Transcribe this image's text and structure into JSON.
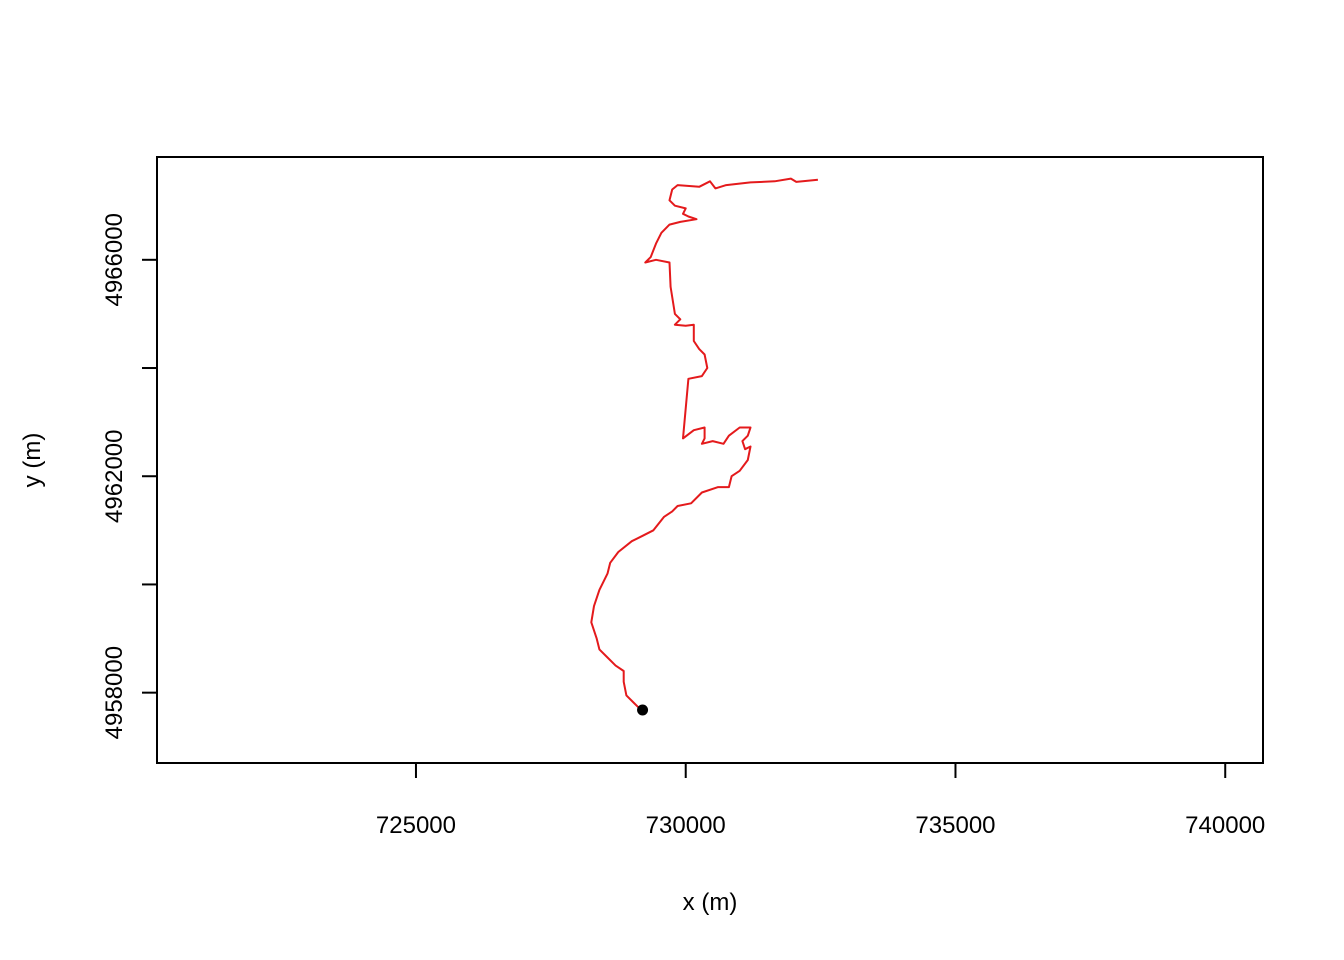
{
  "chart_data": {
    "type": "line",
    "title": "",
    "xlabel": "x (m)",
    "ylabel": "y (m)",
    "xlim": [
      720200,
      740700
    ],
    "ylim": [
      4956700,
      4967900
    ],
    "x_ticks": [
      725000,
      730000,
      735000,
      740000
    ],
    "y_ticks": [
      4956000,
      4958000,
      4960000,
      4962000,
      4964000,
      4966000,
      4968000
    ],
    "x_tick_labels": [
      "725000",
      "730000",
      "735000",
      "740000"
    ],
    "y_tick_labels": [
      "4958000",
      "4962000",
      "4966000"
    ],
    "grid": false,
    "legend": "none",
    "series": [
      {
        "color": "#e41a1c",
        "points": [
          [
            732450,
            4967480
          ],
          [
            732050,
            4967440
          ],
          [
            731950,
            4967500
          ],
          [
            731650,
            4967450
          ],
          [
            731200,
            4967430
          ],
          [
            730750,
            4967380
          ],
          [
            730550,
            4967320
          ],
          [
            730450,
            4967450
          ],
          [
            730250,
            4967350
          ],
          [
            729850,
            4967380
          ],
          [
            729750,
            4967300
          ],
          [
            729700,
            4967100
          ],
          [
            729800,
            4967000
          ],
          [
            730000,
            4966950
          ],
          [
            729950,
            4966850
          ],
          [
            730050,
            4966800
          ],
          [
            730200,
            4966750
          ],
          [
            729900,
            4966700
          ],
          [
            729700,
            4966650
          ],
          [
            729550,
            4966500
          ],
          [
            729450,
            4966300
          ],
          [
            729350,
            4966050
          ],
          [
            729250,
            4965950
          ],
          [
            729450,
            4966000
          ],
          [
            729700,
            4965950
          ],
          [
            729720,
            4965500
          ],
          [
            729800,
            4965000
          ],
          [
            729900,
            4964900
          ],
          [
            729800,
            4964800
          ],
          [
            730000,
            4964780
          ],
          [
            730150,
            4964800
          ],
          [
            730150,
            4964500
          ],
          [
            730250,
            4964350
          ],
          [
            730350,
            4964250
          ],
          [
            730400,
            4964000
          ],
          [
            730300,
            4963850
          ],
          [
            730050,
            4963800
          ],
          [
            729950,
            4962700
          ],
          [
            730150,
            4962850
          ],
          [
            730350,
            4962900
          ],
          [
            730350,
            4962700
          ],
          [
            730300,
            4962600
          ],
          [
            730500,
            4962650
          ],
          [
            730700,
            4962600
          ],
          [
            730800,
            4962750
          ],
          [
            731000,
            4962900
          ],
          [
            731200,
            4962900
          ],
          [
            731150,
            4962750
          ],
          [
            731050,
            4962650
          ],
          [
            731100,
            4962500
          ],
          [
            731200,
            4962550
          ],
          [
            731150,
            4962300
          ],
          [
            731000,
            4962100
          ],
          [
            730850,
            4962000
          ],
          [
            730800,
            4961800
          ],
          [
            730600,
            4961800
          ],
          [
            730300,
            4961700
          ],
          [
            730100,
            4961500
          ],
          [
            729850,
            4961450
          ],
          [
            729750,
            4961350
          ],
          [
            729600,
            4961250
          ],
          [
            729400,
            4961000
          ],
          [
            729200,
            4960900
          ],
          [
            729000,
            4960800
          ],
          [
            728750,
            4960600
          ],
          [
            728600,
            4960400
          ],
          [
            728550,
            4960200
          ],
          [
            728400,
            4959900
          ],
          [
            728300,
            4959600
          ],
          [
            728250,
            4959300
          ],
          [
            728350,
            4959000
          ],
          [
            728400,
            4958800
          ],
          [
            728550,
            4958650
          ],
          [
            728700,
            4958500
          ],
          [
            728850,
            4958400
          ],
          [
            728850,
            4958200
          ],
          [
            728900,
            4957950
          ],
          [
            729050,
            4957800
          ],
          [
            729200,
            4957650
          ]
        ]
      }
    ],
    "start_point": [
      729200,
      4957680
    ]
  }
}
